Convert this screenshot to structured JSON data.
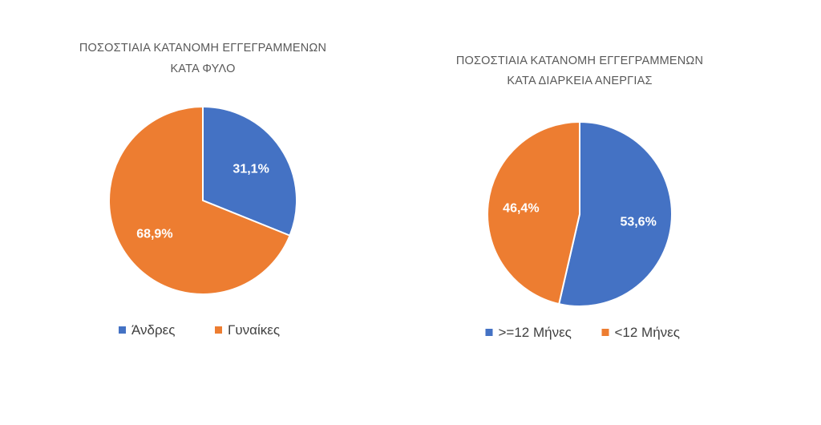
{
  "chart_data": [
    {
      "type": "pie",
      "title": [
        "ΠΟΣΟΣΤΙΑΙΑ ΚΑΤΑΝΟΜΗ ΕΓΓΕΓΡΑΜΜΕΝΩΝ",
        "ΚΑΤΑ ΦΥΛΟ"
      ],
      "categories": [
        "Άνδρες",
        "Γυναίκες"
      ],
      "values": [
        31.1,
        68.9
      ],
      "labels": [
        "31,1%",
        "68,9%"
      ],
      "colors": [
        "#4472C4",
        "#ED7D31"
      ],
      "legend": "bottom"
    },
    {
      "type": "pie",
      "title": [
        "ΠΟΣΟΣΤΙΑΙΑ ΚΑΤΑΝΟΜΗ ΕΓΓΕΓΡΑΜΜΕΝΩΝ",
        "ΚΑΤΑ ΔΙΑΡΚΕΙΑ ΑΝΕΡΓΙΑΣ"
      ],
      "categories": [
        ">=12 Μήνες",
        "<12 Μήνες"
      ],
      "values": [
        53.6,
        46.4
      ],
      "labels": [
        "53,6%",
        "46,4%"
      ],
      "colors": [
        "#4472C4",
        "#ED7D31"
      ],
      "legend": "bottom"
    }
  ]
}
